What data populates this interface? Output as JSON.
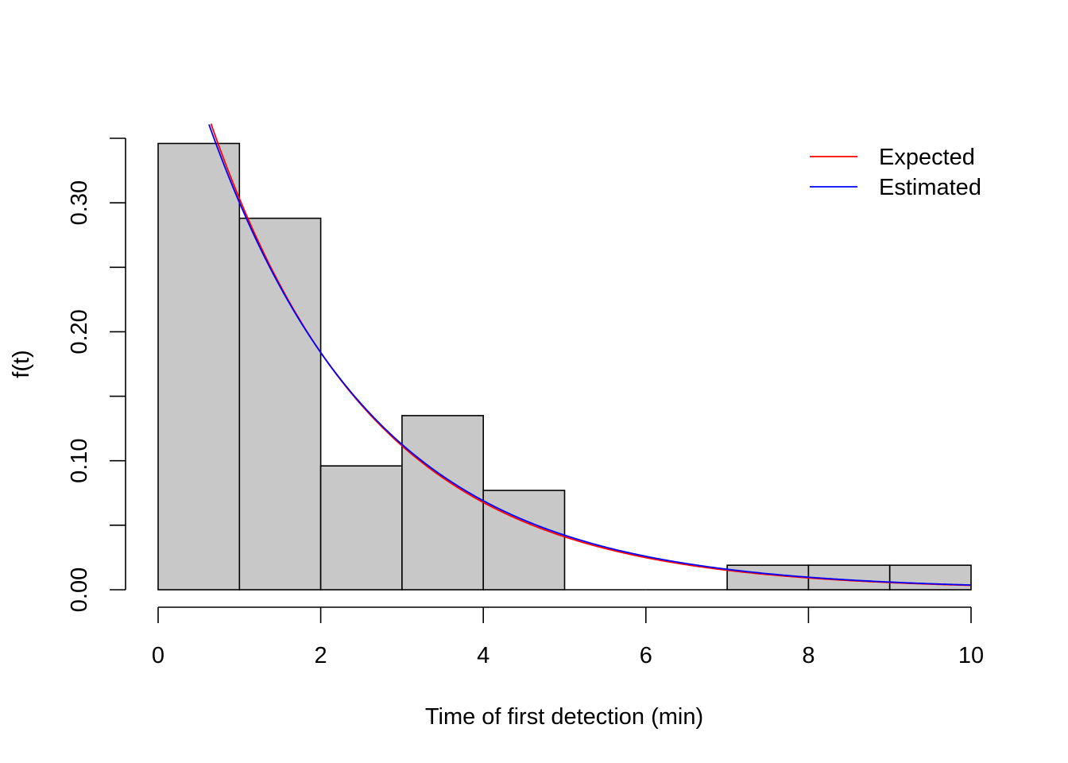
{
  "chart_data": {
    "type": "bar",
    "title": "",
    "xlabel": "Time of first detection (min)",
    "ylabel": "f(t)",
    "xlim": [
      0,
      10
    ],
    "ylim": [
      0,
      0.35
    ],
    "x_ticks": [
      0,
      2,
      4,
      6,
      8,
      10
    ],
    "x_tick_labels": [
      "0",
      "2",
      "4",
      "6",
      "8",
      "10"
    ],
    "y_ticks": [
      0,
      0.05,
      0.1,
      0.15,
      0.2,
      0.25,
      0.3,
      0.35
    ],
    "y_tick_labels": [
      "0.00",
      "",
      "0.10",
      "",
      "0.20",
      "",
      "0.30",
      ""
    ],
    "grid": false,
    "legend_position": "top-right",
    "bins": [
      {
        "start": 0,
        "end": 1,
        "density": 0.346
      },
      {
        "start": 1,
        "end": 2,
        "density": 0.288
      },
      {
        "start": 2,
        "end": 3,
        "density": 0.096
      },
      {
        "start": 3,
        "end": 4,
        "density": 0.135
      },
      {
        "start": 4,
        "end": 5,
        "density": 0.077
      },
      {
        "start": 5,
        "end": 6,
        "density": 0.0
      },
      {
        "start": 6,
        "end": 7,
        "density": 0.0
      },
      {
        "start": 7,
        "end": 8,
        "density": 0.019
      },
      {
        "start": 8,
        "end": 9,
        "density": 0.019
      },
      {
        "start": 9,
        "end": 10,
        "density": 0.019
      }
    ],
    "bar_fill": "#c8c8c8",
    "series": [
      {
        "name": "Expected",
        "kind": "exponential_density",
        "rate": 0.5,
        "color": "#ff0000"
      },
      {
        "name": "Estimated",
        "kind": "exponential_density",
        "rate": 0.49,
        "color": "#0000ff"
      }
    ]
  }
}
